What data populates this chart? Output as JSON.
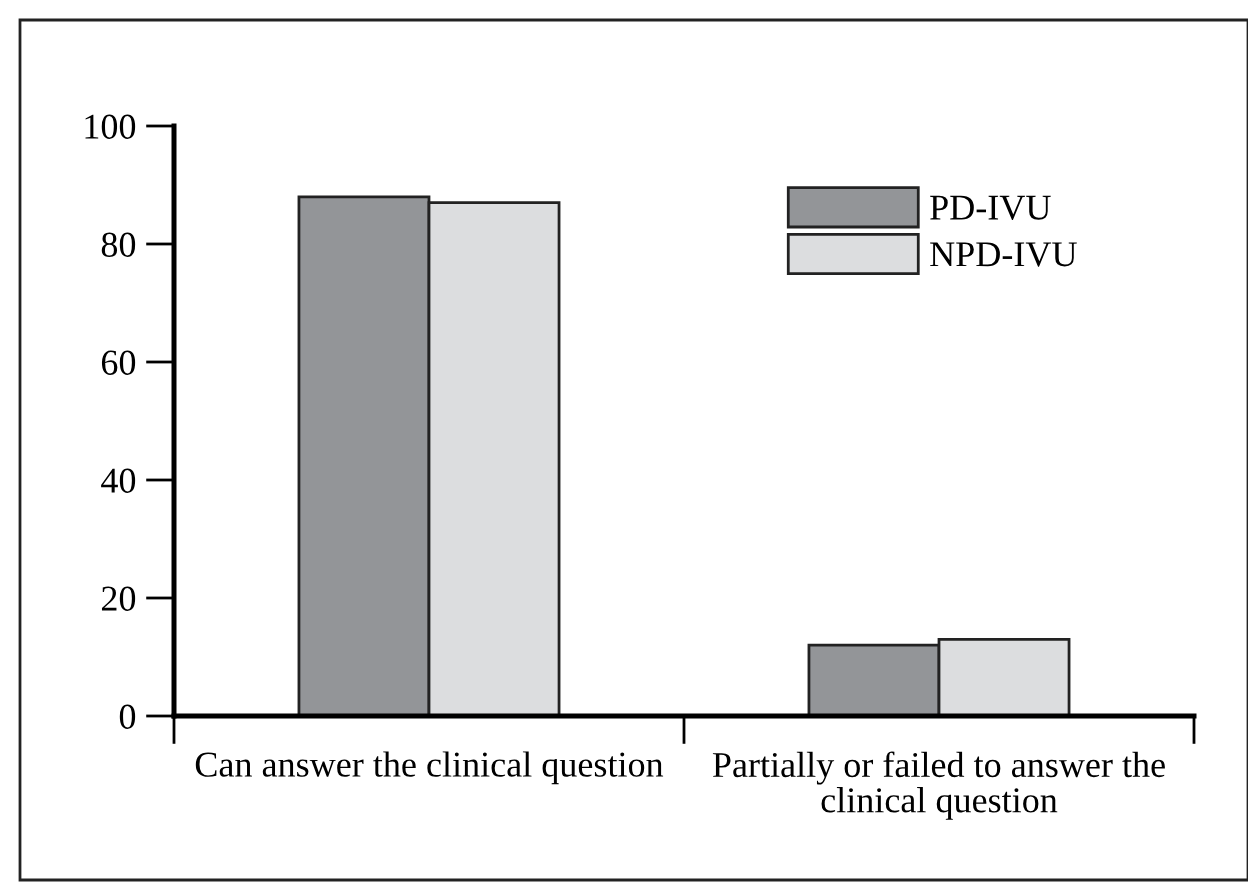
{
  "chart_data": {
    "type": "bar",
    "categories": [
      "Can answer the clinical question",
      "Partially or failed to answer the clinical question"
    ],
    "series": [
      {
        "name": "PD-IVU",
        "color": "#939598",
        "values": [
          88,
          12
        ]
      },
      {
        "name": "NPD-IVU",
        "color": "#dcdddf",
        "values": [
          87,
          13
        ]
      }
    ],
    "ylim": [
      0,
      100
    ],
    "yticks": [
      0,
      20,
      40,
      60,
      80,
      100
    ],
    "grid": false,
    "legend": "top right"
  }
}
